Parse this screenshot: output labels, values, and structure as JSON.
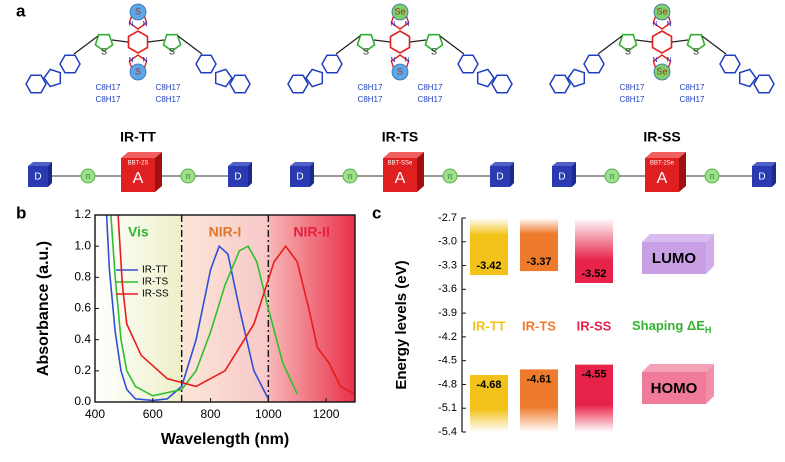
{
  "panel_a": {
    "panel_label": "a",
    "thiophene_atom": "S",
    "nitrogen": "N",
    "chain": "C8H17",
    "scheme": {
      "donor": "D",
      "bridge": "π",
      "acceptor": "A"
    },
    "molecules": [
      {
        "name": "IR-TT",
        "core_atoms": [
          "S",
          "S"
        ],
        "acceptor_label": "BBT-2S"
      },
      {
        "name": "IR-TS",
        "core_atoms": [
          "Se",
          "S"
        ],
        "acceptor_label": "BBT-SSe"
      },
      {
        "name": "IR-SS",
        "core_atoms": [
          "Se",
          "Se"
        ],
        "acceptor_label": "BBT-2Se"
      }
    ]
  },
  "chart_data": [
    {
      "type": "line",
      "panel_label": "b",
      "x_label": "Wavelength (nm)",
      "y_label": "Absorbance (a.u.)",
      "xlim": [
        400,
        1300
      ],
      "xticks": [
        400,
        600,
        800,
        1000,
        1200
      ],
      "ylim": [
        0,
        1.2
      ],
      "yticks": [
        {
          "value": 0,
          "label": "0.0"
        },
        0.2,
        0.4,
        0.6,
        0.8,
        {
          "value": 1,
          "label": "1.0"
        },
        1.2
      ],
      "boundaries": [
        700,
        1000
      ],
      "regions": [
        {
          "name": "Vis",
          "color": "#33b233"
        },
        {
          "name": "NIR-I",
          "color": "#e0772a"
        },
        {
          "name": "NIR-II",
          "color": "#e8203a"
        }
      ],
      "series": [
        {
          "name": "IR-TT",
          "color": "#2f4fd8",
          "x": [
            440,
            450,
            470,
            490,
            510,
            540,
            600,
            650,
            700,
            750,
            800,
            830,
            860,
            900,
            950,
            1000
          ],
          "values": [
            1.2,
            0.85,
            0.45,
            0.2,
            0.08,
            0.02,
            0.01,
            0.02,
            0.1,
            0.4,
            0.85,
            1.0,
            0.95,
            0.6,
            0.2,
            0.02
          ]
        },
        {
          "name": "IR-TS",
          "color": "#2fc02f",
          "x": [
            455,
            470,
            490,
            510,
            540,
            600,
            700,
            750,
            800,
            850,
            900,
            930,
            960,
            1000,
            1050,
            1100
          ],
          "values": [
            1.2,
            0.8,
            0.4,
            0.2,
            0.1,
            0.04,
            0.08,
            0.2,
            0.45,
            0.75,
            0.97,
            1.0,
            0.9,
            0.6,
            0.25,
            0.05
          ]
        },
        {
          "name": "IR-SS",
          "color": "#e81c1c",
          "x": [
            480,
            495,
            510,
            560,
            650,
            750,
            850,
            950,
            1020,
            1060,
            1100,
            1140,
            1170,
            1210,
            1250,
            1300
          ],
          "values": [
            1.2,
            0.75,
            0.5,
            0.3,
            0.15,
            0.1,
            0.2,
            0.5,
            0.9,
            1.0,
            0.9,
            0.6,
            0.35,
            0.25,
            0.1,
            0.05
          ]
        }
      ]
    },
    {
      "type": "bar",
      "panel_label": "c",
      "y_label": "Energy levels (eV)",
      "ylim": [
        -5.4,
        -2.7
      ],
      "yticks": [
        -2.7,
        {
          "value": -3,
          "label": "-3.0"
        },
        -3.3,
        -3.6,
        -3.9,
        -4.2,
        -4.5,
        -4.8,
        -5.1,
        -5.4
      ],
      "categories": [
        "IR-TT",
        "IR-TS",
        "IR-SS"
      ],
      "colors": [
        "#f2c21a",
        "#ee7a2c",
        "#e8234a"
      ],
      "annotation": {
        "text": "Shaping ΔE",
        "subscript": "H",
        "color": "#33b233"
      },
      "series": [
        {
          "name": "LUMO",
          "color": "#c9a0e6",
          "values": [
            -3.42,
            -3.37,
            -3.52
          ]
        },
        {
          "name": "HOMO",
          "color": "#f07a9a",
          "values": [
            -4.68,
            -4.61,
            -4.55
          ]
        }
      ]
    }
  ]
}
